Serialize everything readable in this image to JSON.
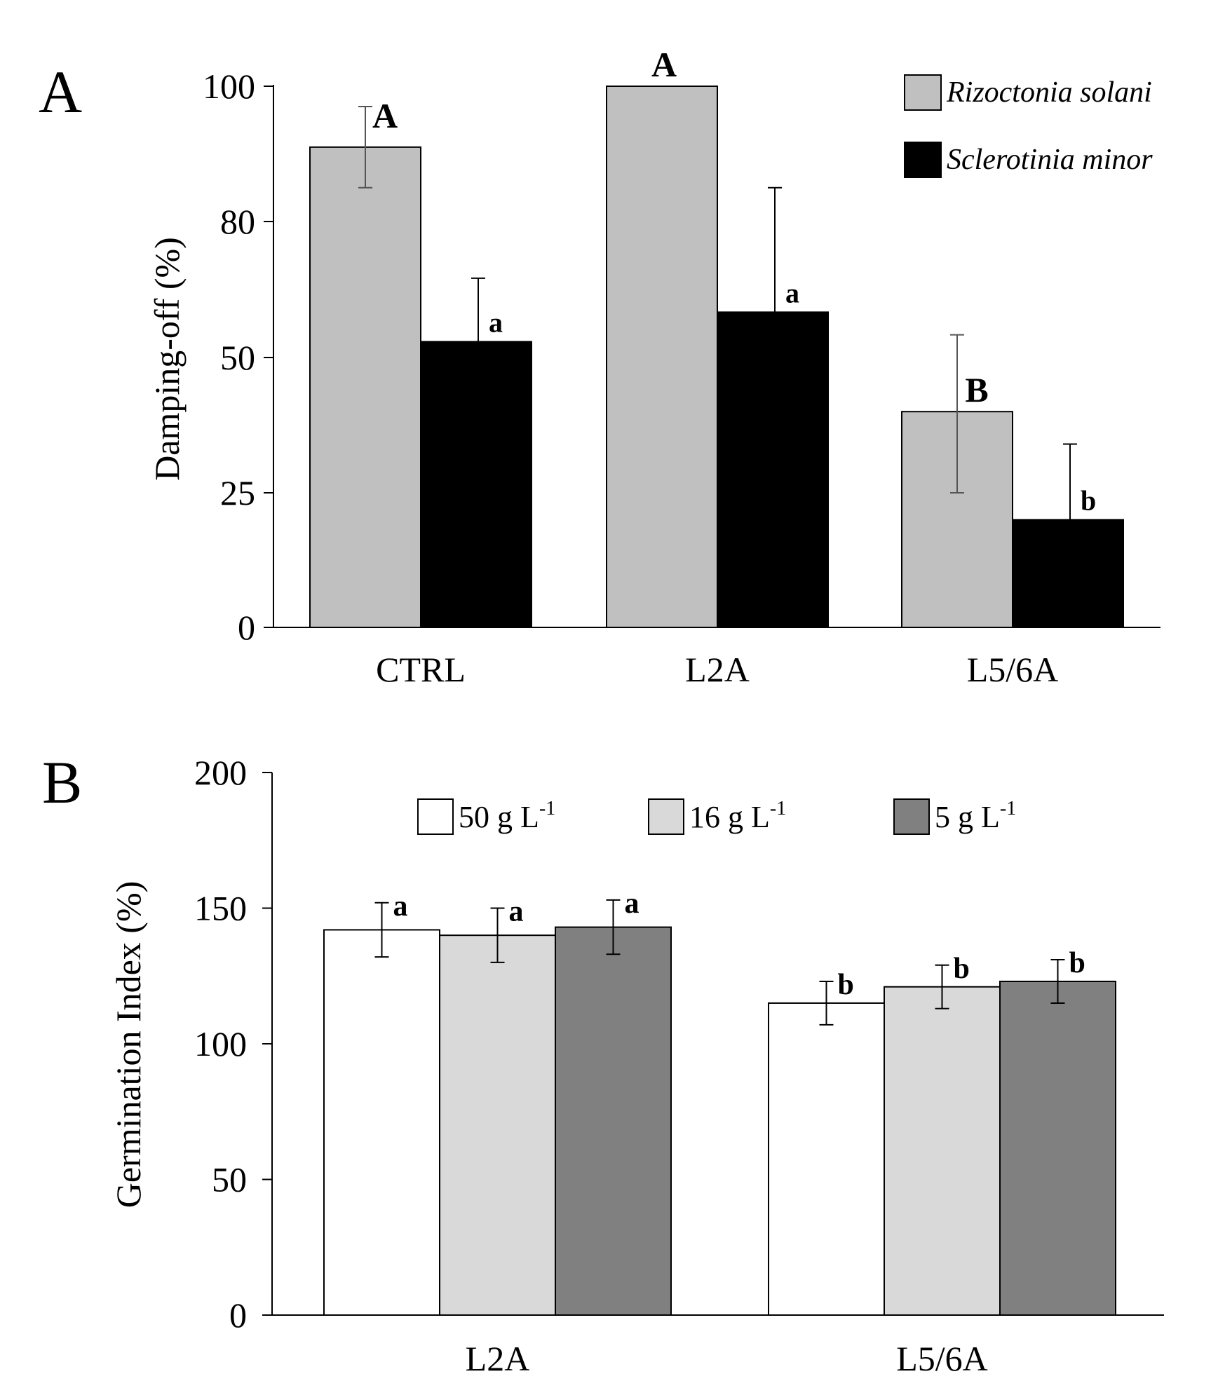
{
  "chart_data": [
    {
      "type": "bar",
      "panel_label": "A",
      "title": "",
      "xlabel": "",
      "ylabel": "Damping-off (%)",
      "yticks": [
        0,
        25,
        50,
        80,
        100
      ],
      "categories": [
        "CTRL",
        "L2A",
        "L5/6A"
      ],
      "series": [
        {
          "name": "Rizoctonia solani",
          "color": "#c0c0c0",
          "values": [
            91,
            100,
            40
          ],
          "errors": [
            6,
            0,
            15
          ],
          "letters": [
            "A",
            "A",
            "B"
          ]
        },
        {
          "name": "Sclerotinia minor",
          "color": "#000000",
          "values": [
            53.5,
            60,
            20
          ],
          "errors": [
            14,
            25,
            14
          ],
          "letters": [
            "a",
            "a",
            "b"
          ]
        }
      ],
      "legend_placement": "top-right",
      "grid": false
    },
    {
      "type": "bar",
      "panel_label": "B",
      "title": "",
      "xlabel": "",
      "ylabel": "Germination Index (%)",
      "yticks": [
        0,
        50,
        100,
        150,
        200
      ],
      "ylim": [
        0,
        200
      ],
      "categories": [
        "L2A",
        "L5/6A"
      ],
      "series": [
        {
          "name": "50 g L",
          "sup": "-1",
          "color": "#ffffff",
          "values": [
            142,
            115
          ],
          "errors": [
            10,
            8
          ],
          "letters": [
            "a",
            "b"
          ]
        },
        {
          "name": "16 g L",
          "sup": "-1",
          "color": "#d9d9d9",
          "values": [
            140,
            121
          ],
          "errors": [
            10,
            8
          ],
          "letters": [
            "a",
            "b"
          ]
        },
        {
          "name": "5 g L",
          "sup": "-1",
          "color": "#808080",
          "values": [
            143,
            123
          ],
          "errors": [
            10,
            8
          ],
          "letters": [
            "a",
            "b"
          ]
        }
      ],
      "legend_placement": "top",
      "grid": false
    }
  ]
}
